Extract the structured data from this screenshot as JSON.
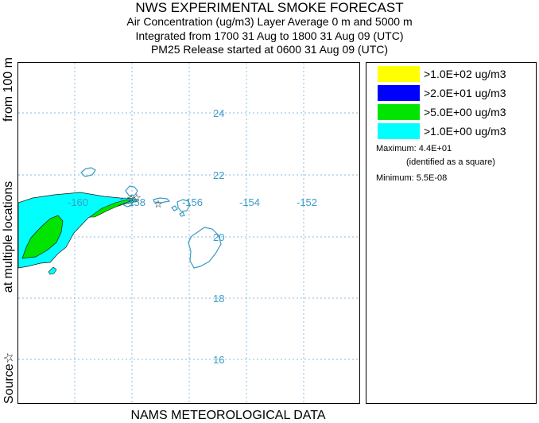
{
  "header": {
    "title": "NWS EXPERIMENTAL SMOKE FORECAST",
    "line2": "Air Concentration (ug/m3) Layer Average    0 m and  5000 m",
    "line3": "Integrated from 1700 31 Aug to 1800 31 Aug 09 (UTC)",
    "line4": "PM25 Release started at 0600 31 Aug 09 (UTC)"
  },
  "side_label": {
    "part1": "Source☆",
    "part2": "at multiple locations",
    "part3": "from   100 m"
  },
  "footer": "NAMS METEOROLOGICAL DATA",
  "map": {
    "latitude_labels": [
      "24",
      "22",
      "20",
      "18",
      "16"
    ],
    "longitude_labels": [
      "-160",
      "-158",
      "-156",
      "-154",
      "-152"
    ],
    "coastline_color": "#3b9bc4",
    "gridline_color": "#86bde0",
    "source_marker": "☆"
  },
  "legend": {
    "entries": [
      {
        "label": ">1.0E+02 ug/m3",
        "color": "#ffff00"
      },
      {
        "label": ">2.0E+01 ug/m3",
        "color": "#0000ff"
      },
      {
        "label": ">5.0E+00 ug/m3",
        "color": "#00e400"
      },
      {
        "label": ">1.0E+00 ug/m3",
        "color": "#00ffff"
      }
    ],
    "maximum": "Maximum: 4.4E+01",
    "maximum_note": "(identified as a square)",
    "minimum": "Minimum: 5.5E-08"
  }
}
